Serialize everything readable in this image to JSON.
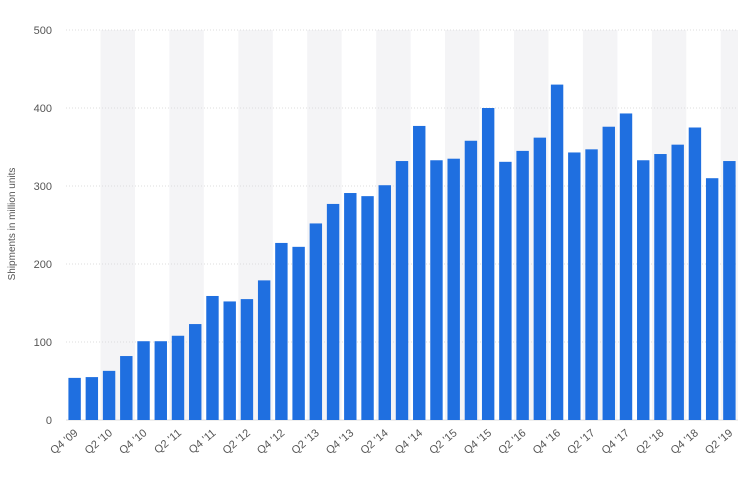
{
  "chart_data": {
    "type": "bar",
    "title": "",
    "xlabel": "",
    "ylabel": "Shipments in million units",
    "ylim": [
      0,
      500
    ],
    "yticks": [
      0,
      100,
      200,
      300,
      400,
      500
    ],
    "grid": true,
    "bar_color": "#1f6fe0",
    "band_color": "#f4f4f6",
    "grid_color": "#dddddd",
    "categories": [
      "Q4 '09",
      "Q1 '10",
      "Q2 '10",
      "Q3 '10",
      "Q4 '10",
      "Q1 '11",
      "Q2 '11",
      "Q3 '11",
      "Q4 '11",
      "Q1 '12",
      "Q2 '12",
      "Q3 '12",
      "Q4 '12",
      "Q1 '13",
      "Q2 '13",
      "Q3 '13",
      "Q4 '13",
      "Q1 '14",
      "Q2 '14",
      "Q3 '14",
      "Q4 '14",
      "Q1 '15",
      "Q2 '15",
      "Q3 '15",
      "Q4 '15",
      "Q1 '16",
      "Q2 '16",
      "Q3 '16",
      "Q4 '16",
      "Q1 '17",
      "Q2 '17",
      "Q3 '17",
      "Q4 '17",
      "Q1 '18",
      "Q2 '18",
      "Q3 '18",
      "Q4 '18",
      "Q1 '19",
      "Q2 '19"
    ],
    "tick_labels": [
      "Q4 '09",
      "Q2 '10",
      "Q4 '10",
      "Q2 '11",
      "Q4 '11",
      "Q2 '12",
      "Q4 '12",
      "Q2 '13",
      "Q4 '13",
      "Q2 '14",
      "Q4 '14",
      "Q2 '15",
      "Q4 '15",
      "Q2 '16",
      "Q4 '16",
      "Q2 '17",
      "Q4 '17",
      "Q2 '18",
      "Q4 '18",
      "Q2 '19"
    ],
    "values": [
      54,
      55,
      63,
      82,
      101,
      101,
      108,
      123,
      159,
      152,
      155,
      179,
      227,
      222,
      252,
      277,
      291,
      287,
      301,
      332,
      377,
      333,
      335,
      358,
      400,
      331,
      345,
      362,
      430,
      343,
      347,
      376,
      393,
      333,
      341,
      353,
      375,
      310,
      332
    ]
  }
}
